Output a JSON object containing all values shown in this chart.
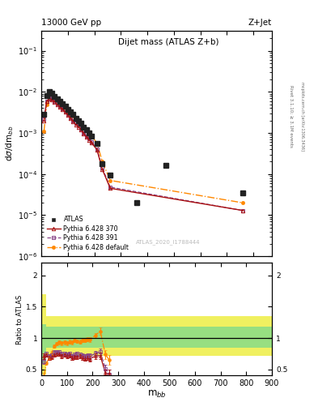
{
  "title_main": "Dijet mass (ATLAS Z+b)",
  "header_left": "13000 GeV pp",
  "header_right": "Z+Jet",
  "ylabel_main": "dσ/dm$_{bb}$",
  "ylabel_ratio": "Ratio to ATLAS",
  "xlabel": "m$_{bb}$",
  "watermark": "ATLAS_2020_I1788444",
  "rivet_text": "Rivet 3.1.10; ≥ 3.1M events",
  "mcplots_text": "mcplots.cern.ch [arXiv:1306.3436]",
  "atlas_x": [
    10,
    20,
    30,
    40,
    50,
    60,
    70,
    80,
    90,
    100,
    110,
    120,
    130,
    140,
    150,
    160,
    170,
    180,
    190,
    210,
    230,
    260,
    360,
    470,
    760
  ],
  "atlas_y": [
    0.0028,
    0.008,
    0.01,
    0.0092,
    0.0078,
    0.0068,
    0.0058,
    0.0052,
    0.0044,
    0.0038,
    0.0032,
    0.0028,
    0.0023,
    0.002,
    0.0017,
    0.0014,
    0.0012,
    0.001,
    0.00085,
    0.00055,
    0.00018,
    9.5e-05,
    2e-05,
    0.00016,
    3.5e-05
  ],
  "py370_x": [
    10,
    20,
    30,
    40,
    50,
    60,
    70,
    80,
    90,
    100,
    110,
    120,
    130,
    140,
    150,
    160,
    170,
    180,
    190,
    210,
    230,
    260,
    760
  ],
  "py370_y": [
    0.002,
    0.0058,
    0.0068,
    0.0064,
    0.0057,
    0.005,
    0.0043,
    0.0037,
    0.0032,
    0.0027,
    0.0023,
    0.0019,
    0.0016,
    0.0014,
    0.0012,
    0.00095,
    0.0008,
    0.00068,
    0.00057,
    0.00039,
    0.00013,
    4.5e-05,
    1.3e-05
  ],
  "py391_x": [
    10,
    20,
    30,
    40,
    50,
    60,
    70,
    80,
    90,
    100,
    110,
    120,
    130,
    140,
    150,
    160,
    170,
    180,
    190,
    210,
    230,
    260,
    760
  ],
  "py391_y": [
    0.0022,
    0.006,
    0.0071,
    0.0067,
    0.006,
    0.0052,
    0.0045,
    0.0039,
    0.0033,
    0.0028,
    0.0024,
    0.002,
    0.0017,
    0.0015,
    0.00125,
    0.001,
    0.00085,
    0.00072,
    0.0006,
    0.00041,
    0.00014,
    4.8e-05,
    1.3e-05
  ],
  "pydef_x": [
    10,
    20,
    30,
    40,
    50,
    60,
    70,
    80,
    90,
    100,
    110,
    120,
    130,
    140,
    150,
    160,
    170,
    180,
    190,
    210,
    230,
    260,
    760
  ],
  "pydef_y": [
    0.0011,
    0.0048,
    0.0068,
    0.007,
    0.0068,
    0.0062,
    0.0054,
    0.0048,
    0.0041,
    0.0035,
    0.003,
    0.0026,
    0.0022,
    0.0019,
    0.0016,
    0.00135,
    0.00115,
    0.00098,
    0.00083,
    0.00057,
    0.0002,
    7e-05,
    2e-05
  ],
  "ratio_370_x": [
    10,
    20,
    30,
    40,
    50,
    60,
    70,
    80,
    90,
    100,
    110,
    120,
    130,
    140,
    150,
    160,
    170,
    180,
    190,
    210,
    230,
    250,
    265
  ],
  "ratio_370_y": [
    0.71,
    0.73,
    0.68,
    0.7,
    0.73,
    0.74,
    0.74,
    0.71,
    0.73,
    0.71,
    0.72,
    0.68,
    0.7,
    0.7,
    0.71,
    0.68,
    0.67,
    0.68,
    0.67,
    0.71,
    0.72,
    0.44,
    0.43
  ],
  "ratio_370_yerr": [
    0.04,
    0.03,
    0.03,
    0.03,
    0.03,
    0.03,
    0.03,
    0.03,
    0.03,
    0.03,
    0.03,
    0.03,
    0.03,
    0.03,
    0.03,
    0.03,
    0.03,
    0.03,
    0.04,
    0.04,
    0.05,
    0.06,
    0.07
  ],
  "ratio_391_x": [
    10,
    20,
    30,
    40,
    50,
    60,
    70,
    80,
    90,
    100,
    110,
    120,
    130,
    140,
    150,
    160,
    170,
    180,
    190,
    210,
    230,
    250,
    265
  ],
  "ratio_391_y": [
    0.62,
    0.75,
    0.71,
    0.73,
    0.77,
    0.77,
    0.78,
    0.75,
    0.75,
    0.74,
    0.75,
    0.71,
    0.74,
    0.75,
    0.74,
    0.72,
    0.71,
    0.72,
    0.71,
    0.75,
    0.78,
    0.51,
    0.42
  ],
  "ratio_391_yerr": [
    0.04,
    0.03,
    0.03,
    0.03,
    0.03,
    0.03,
    0.03,
    0.03,
    0.03,
    0.03,
    0.03,
    0.03,
    0.03,
    0.03,
    0.03,
    0.03,
    0.03,
    0.03,
    0.04,
    0.04,
    0.05,
    0.06,
    0.07
  ],
  "ratio_def_x": [
    10,
    20,
    30,
    40,
    50,
    60,
    70,
    80,
    90,
    100,
    110,
    120,
    130,
    140,
    150,
    160,
    170,
    180,
    190,
    210,
    230,
    250,
    265
  ],
  "ratio_def_y": [
    0.39,
    0.6,
    0.68,
    0.76,
    0.87,
    0.91,
    0.93,
    0.92,
    0.93,
    0.92,
    0.94,
    0.93,
    0.96,
    0.95,
    0.94,
    0.96,
    0.96,
    0.98,
    0.98,
    1.04,
    1.11,
    0.74,
    0.65
  ],
  "ratio_def_yerr": [
    0.05,
    0.03,
    0.03,
    0.03,
    0.03,
    0.03,
    0.03,
    0.03,
    0.03,
    0.03,
    0.03,
    0.03,
    0.03,
    0.03,
    0.03,
    0.03,
    0.03,
    0.03,
    0.04,
    0.04,
    0.06,
    0.07,
    0.08
  ],
  "band_edges": [
    0,
    20,
    130,
    620,
    900
  ],
  "band_yellow_low": [
    0.42,
    0.72,
    0.72,
    0.72,
    0.72
  ],
  "band_yellow_high": [
    1.7,
    1.35,
    1.35,
    1.35,
    1.35
  ],
  "band_green_low": [
    0.6,
    0.85,
    0.85,
    0.85,
    0.85
  ],
  "band_green_high": [
    1.22,
    1.18,
    1.18,
    1.18,
    1.18
  ],
  "color_atlas": "#222222",
  "color_py370": "#aa1111",
  "color_py391": "#884488",
  "color_pydef": "#ff8800",
  "color_green": "#88dd88",
  "color_yellow": "#eeee44",
  "ylim_main": [
    1e-06,
    0.3
  ],
  "ylim_ratio": [
    0.4,
    2.2
  ],
  "xlim_main": [
    0,
    870
  ],
  "xlim_ratio": [
    0,
    900
  ]
}
